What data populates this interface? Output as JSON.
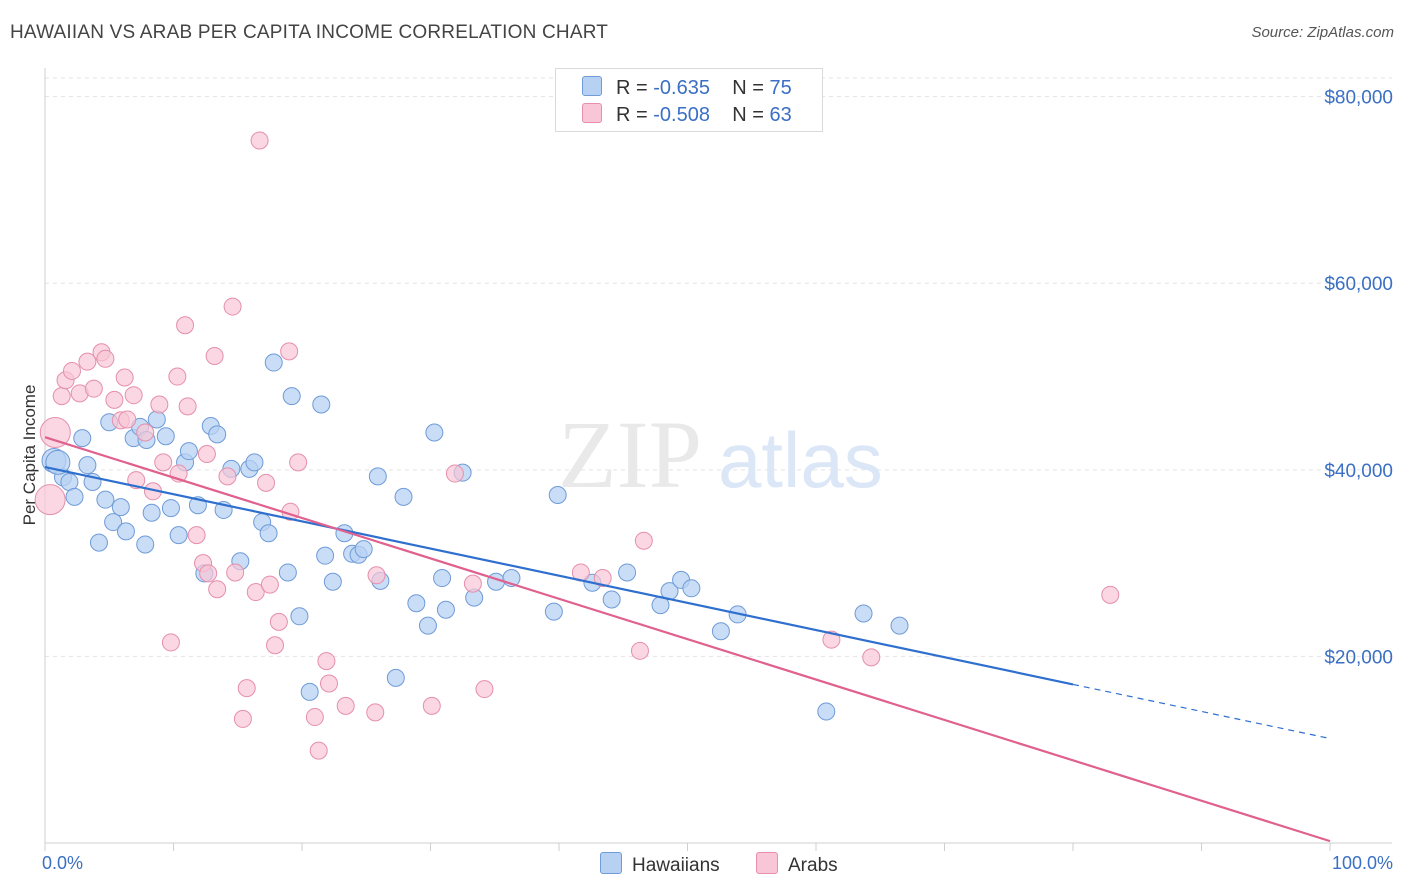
{
  "title": "HAWAIIAN VS ARAB PER CAPITA INCOME CORRELATION CHART",
  "source": "Source: ZipAtlas.com",
  "watermark": {
    "zip": "ZIP",
    "atlas": "atlas"
  },
  "colors": {
    "blue_fill": "#b7d1f3",
    "blue_stroke": "#6f9bd8",
    "blue_line": "#2f6fce",
    "pink_fill": "#f8c6d6",
    "pink_stroke": "#e58fac",
    "pink_line": "#e0608e",
    "axis_label": "#3a6fc4"
  },
  "legend": {
    "rows": [
      {
        "r_label": "R = ",
        "r_value": "-0.635",
        "n_label": "N = ",
        "n_value": "75"
      },
      {
        "r_label": "R = ",
        "r_value": "-0.508",
        "n_label": "N = ",
        "n_value": "63"
      }
    ]
  },
  "bottom_legend": {
    "hawaiians": "Hawaiians",
    "arabs": "Arabs"
  },
  "chart_data": {
    "type": "scatter",
    "title": "HAWAIIAN VS ARAB PER CAPITA INCOME CORRELATION CHART",
    "ylabel": "Per Capita Income",
    "xlabel": "",
    "xlim": [
      0,
      100
    ],
    "ylim": [
      0,
      82000
    ],
    "x_tick_labels": [
      "0.0%",
      "100.0%"
    ],
    "y_ticks": [
      20000,
      40000,
      60000,
      80000
    ],
    "y_tick_labels": [
      "$20,000",
      "$40,000",
      "$60,000",
      "$80,000"
    ],
    "series": [
      {
        "name": "Hawaiians",
        "r": -0.635,
        "n": 75,
        "trend": {
          "x0": 0,
          "y0": 40300,
          "x1": 80,
          "y1": 17000,
          "dash_x1": 100,
          "dash_y1": 11200
        },
        "points": [
          [
            0.7,
            41000
          ],
          [
            1.4,
            39200
          ],
          [
            1.9,
            38700
          ],
          [
            2.3,
            37100
          ],
          [
            2.9,
            43400
          ],
          [
            3.3,
            40500
          ],
          [
            3.7,
            38700
          ],
          [
            4.2,
            32200
          ],
          [
            4.7,
            36800
          ],
          [
            5.3,
            34400
          ],
          [
            5.9,
            36000
          ],
          [
            6.3,
            33400
          ],
          [
            6.9,
            43400
          ],
          [
            7.4,
            44600
          ],
          [
            7.8,
            32000
          ],
          [
            8.3,
            35400
          ],
          [
            8.7,
            45400
          ],
          [
            9.4,
            43600
          ],
          [
            9.8,
            35900
          ],
          [
            10.4,
            33000
          ],
          [
            10.9,
            40800
          ],
          [
            11.2,
            42000
          ],
          [
            11.9,
            36200
          ],
          [
            12.4,
            28900
          ],
          [
            12.9,
            44700
          ],
          [
            13.4,
            43800
          ],
          [
            13.9,
            35700
          ],
          [
            14.5,
            40100
          ],
          [
            15.2,
            30200
          ],
          [
            15.9,
            40100
          ],
          [
            16.3,
            40800
          ],
          [
            16.9,
            34400
          ],
          [
            17.4,
            33200
          ],
          [
            17.8,
            51500
          ],
          [
            18.9,
            29000
          ],
          [
            19.2,
            47900
          ],
          [
            19.8,
            24300
          ],
          [
            20.6,
            16200
          ],
          [
            21.5,
            47000
          ],
          [
            21.8,
            30800
          ],
          [
            22.4,
            28000
          ],
          [
            23.3,
            33200
          ],
          [
            23.9,
            31000
          ],
          [
            24.4,
            30900
          ],
          [
            24.8,
            31500
          ],
          [
            25.9,
            39300
          ],
          [
            26.1,
            28100
          ],
          [
            27.3,
            17700
          ],
          [
            27.9,
            37100
          ],
          [
            28.9,
            25700
          ],
          [
            29.8,
            23300
          ],
          [
            30.3,
            44000
          ],
          [
            30.9,
            28400
          ],
          [
            31.2,
            25000
          ],
          [
            32.5,
            39700
          ],
          [
            33.4,
            26300
          ],
          [
            35.1,
            28000
          ],
          [
            36.3,
            28400
          ],
          [
            39.6,
            24800
          ],
          [
            39.9,
            37300
          ],
          [
            42.6,
            27900
          ],
          [
            44.1,
            26100
          ],
          [
            45.3,
            29000
          ],
          [
            47.9,
            25500
          ],
          [
            48.6,
            27000
          ],
          [
            49.5,
            28200
          ],
          [
            50.3,
            27300
          ],
          [
            52.6,
            22700
          ],
          [
            53.9,
            24500
          ],
          [
            60.8,
            14100
          ],
          [
            63.7,
            24600
          ],
          [
            66.5,
            23300
          ],
          [
            1.0,
            40800
          ],
          [
            5.0,
            45100
          ],
          [
            7.9,
            43200
          ]
        ]
      },
      {
        "name": "Arabs",
        "r": -0.508,
        "n": 63,
        "trend": {
          "x0": 0,
          "y0": 43500,
          "x1": 100,
          "y1": 200
        },
        "points": [
          [
            0.4,
            36800
          ],
          [
            0.8,
            44000
          ],
          [
            1.3,
            47900
          ],
          [
            1.6,
            49600
          ],
          [
            2.1,
            50600
          ],
          [
            2.7,
            48200
          ],
          [
            3.3,
            51600
          ],
          [
            3.8,
            48700
          ],
          [
            4.4,
            52600
          ],
          [
            4.7,
            51900
          ],
          [
            5.4,
            47500
          ],
          [
            5.9,
            45300
          ],
          [
            6.4,
            45400
          ],
          [
            6.9,
            48000
          ],
          [
            7.1,
            38900
          ],
          [
            7.8,
            44000
          ],
          [
            8.4,
            37700
          ],
          [
            8.9,
            47000
          ],
          [
            9.2,
            40800
          ],
          [
            9.8,
            21500
          ],
          [
            10.3,
            50000
          ],
          [
            10.4,
            39600
          ],
          [
            10.9,
            55500
          ],
          [
            11.1,
            46800
          ],
          [
            11.8,
            33000
          ],
          [
            12.3,
            30000
          ],
          [
            12.7,
            28900
          ],
          [
            13.2,
            52200
          ],
          [
            13.4,
            27200
          ],
          [
            14.2,
            39300
          ],
          [
            14.6,
            57500
          ],
          [
            14.8,
            29000
          ],
          [
            15.4,
            13300
          ],
          [
            15.7,
            16600
          ],
          [
            16.4,
            26900
          ],
          [
            16.7,
            75300
          ],
          [
            17.2,
            38600
          ],
          [
            17.5,
            27700
          ],
          [
            17.9,
            21200
          ],
          [
            18.2,
            23700
          ],
          [
            19.0,
            52700
          ],
          [
            19.1,
            35500
          ],
          [
            19.7,
            40800
          ],
          [
            21.0,
            13500
          ],
          [
            21.3,
            9900
          ],
          [
            21.9,
            19500
          ],
          [
            22.1,
            17100
          ],
          [
            23.4,
            14700
          ],
          [
            25.7,
            14000
          ],
          [
            25.8,
            28700
          ],
          [
            30.1,
            14700
          ],
          [
            31.9,
            39600
          ],
          [
            33.3,
            27800
          ],
          [
            34.2,
            16500
          ],
          [
            41.7,
            29000
          ],
          [
            43.4,
            28400
          ],
          [
            46.3,
            20600
          ],
          [
            46.6,
            32400
          ],
          [
            61.2,
            21800
          ],
          [
            64.3,
            19900
          ],
          [
            82.9,
            26600
          ],
          [
            6.2,
            49900
          ],
          [
            12.6,
            41700
          ]
        ]
      }
    ]
  }
}
